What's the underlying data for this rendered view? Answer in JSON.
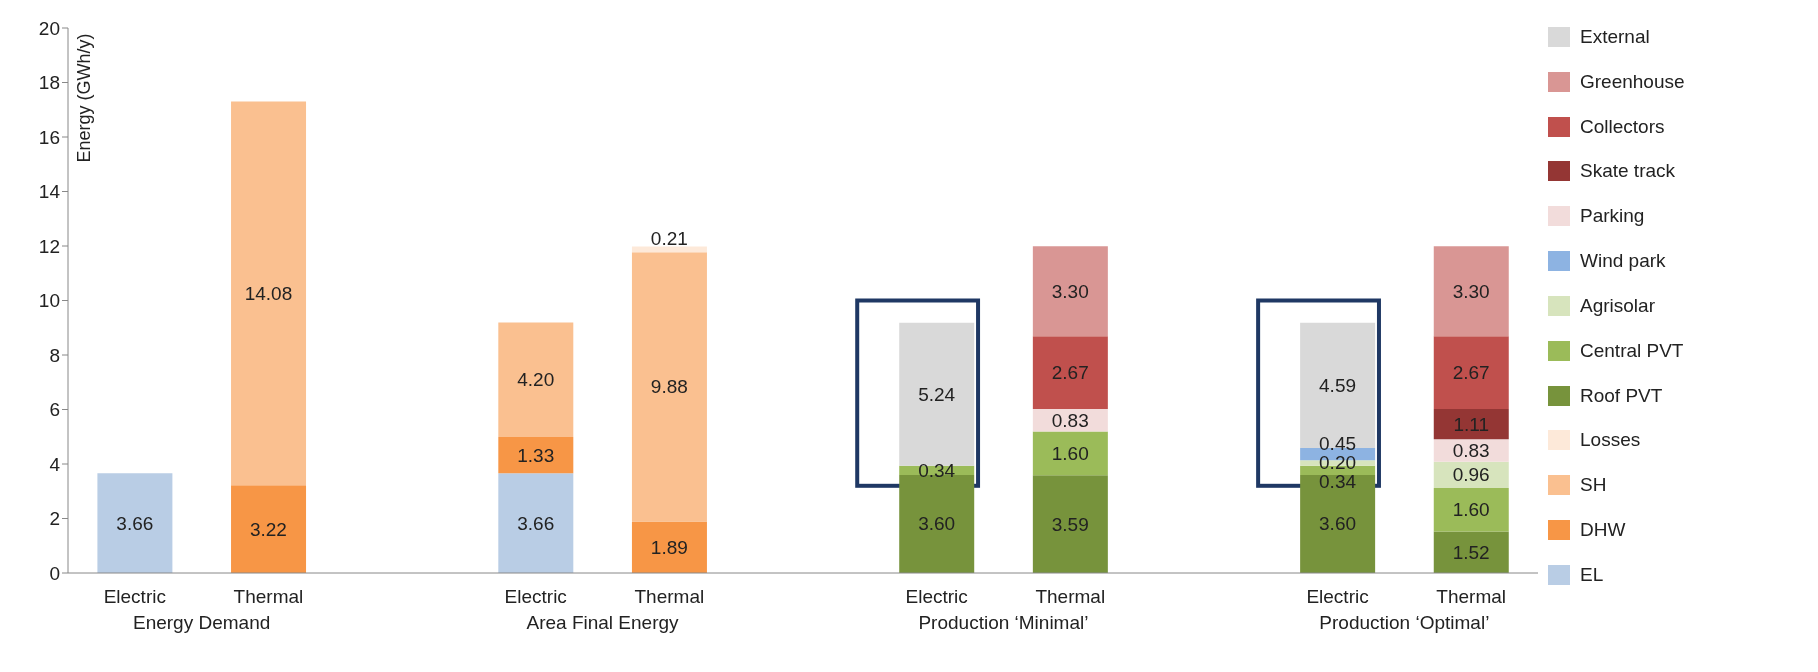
{
  "chart_data": {
    "type": "bar",
    "stacked": true,
    "ylabel": "Energy (GWh/y)",
    "ylim": [
      0,
      20
    ],
    "yticks": [
      0,
      2,
      4,
      6,
      8,
      10,
      12,
      14,
      16,
      18,
      20
    ],
    "legend": "right",
    "categories": [
      "Electric",
      "Thermal",
      null,
      "Electric",
      "Thermal",
      null,
      "Electric",
      "Thermal",
      null,
      "Electric",
      "Thermal"
    ],
    "annotations": [
      "Energy Demand",
      "Area Final Energy",
      "Production ‘Minimal’",
      "Production ‘Optimal’"
    ],
    "series": [
      {
        "name": "EL",
        "color": "#b9cde5",
        "values": [
          3.66,
          null,
          null,
          3.66,
          null,
          null,
          null,
          null,
          null,
          null,
          null
        ],
        "value_labels": [
          "3.66",
          null,
          null,
          "3.66",
          null,
          null,
          null,
          null,
          null,
          null,
          null
        ]
      },
      {
        "name": "DHW",
        "color": "#f79646",
        "values": [
          null,
          3.22,
          null,
          1.33,
          1.89,
          null,
          null,
          null,
          null,
          null,
          null
        ],
        "value_labels": [
          null,
          "3.22",
          null,
          "1.33",
          "1.89",
          null,
          null,
          null,
          null,
          null,
          null
        ]
      },
      {
        "name": "SH",
        "color": "#fac090",
        "values": [
          null,
          14.08,
          null,
          4.2,
          9.88,
          null,
          null,
          null,
          null,
          null,
          null
        ],
        "value_labels": [
          null,
          "14.08",
          null,
          "4.20",
          "9.88",
          null,
          null,
          null,
          null,
          null,
          null
        ]
      },
      {
        "name": "Losses",
        "color": "#fde9d9",
        "values": [
          null,
          null,
          null,
          null,
          0.21,
          null,
          null,
          null,
          null,
          null,
          null
        ],
        "value_labels": [
          null,
          null,
          null,
          null,
          "0.21",
          null,
          null,
          null,
          null,
          null,
          null
        ]
      },
      {
        "name": "Roof PVT",
        "color": "#77933c",
        "values": [
          null,
          null,
          null,
          null,
          null,
          null,
          3.6,
          3.59,
          null,
          3.6,
          1.52
        ],
        "value_labels": [
          null,
          null,
          null,
          null,
          null,
          null,
          "3.60",
          "3.59",
          null,
          "3.60",
          "1.52"
        ]
      },
      {
        "name": "Central PVT",
        "color": "#9bbb59",
        "values": [
          null,
          null,
          null,
          null,
          null,
          null,
          0.34,
          1.6,
          null,
          0.34,
          1.6
        ],
        "value_labels": [
          null,
          null,
          null,
          null,
          null,
          null,
          "0.34",
          "1.60",
          null,
          "0.34",
          "1.60"
        ]
      },
      {
        "name": "Agrisolar",
        "color": "#d7e4bd",
        "values": [
          null,
          null,
          null,
          null,
          null,
          null,
          null,
          null,
          null,
          0.2,
          0.96
        ],
        "value_labels": [
          null,
          null,
          null,
          null,
          null,
          null,
          null,
          null,
          null,
          "0.20",
          "0.96"
        ]
      },
      {
        "name": "Wind park",
        "color": "#8db3e2",
        "values": [
          null,
          null,
          null,
          null,
          null,
          null,
          null,
          null,
          null,
          0.45,
          null
        ],
        "value_labels": [
          null,
          null,
          null,
          null,
          null,
          null,
          null,
          null,
          null,
          "0.45",
          null
        ]
      },
      {
        "name": "Parking",
        "color": "#f2dcdb",
        "values": [
          null,
          null,
          null,
          null,
          null,
          null,
          null,
          0.83,
          null,
          null,
          0.83
        ],
        "value_labels": [
          null,
          null,
          null,
          null,
          null,
          null,
          null,
          "0.83",
          null,
          null,
          "0.83"
        ]
      },
      {
        "name": "Skate track",
        "color": "#943634",
        "values": [
          null,
          null,
          null,
          null,
          null,
          null,
          null,
          null,
          null,
          null,
          1.11
        ],
        "value_labels": [
          null,
          null,
          null,
          null,
          null,
          null,
          null,
          null,
          null,
          null,
          "1.11"
        ]
      },
      {
        "name": "Collectors",
        "color": "#c0504d",
        "values": [
          null,
          null,
          null,
          null,
          null,
          null,
          null,
          2.67,
          null,
          null,
          2.67
        ],
        "value_labels": [
          null,
          null,
          null,
          null,
          null,
          null,
          null,
          "2.67",
          null,
          null,
          "2.67"
        ]
      },
      {
        "name": "Greenhouse",
        "color": "#d99694",
        "values": [
          null,
          null,
          null,
          null,
          null,
          null,
          null,
          3.3,
          null,
          null,
          3.3
        ],
        "value_labels": [
          null,
          null,
          null,
          null,
          null,
          null,
          null,
          "3.30",
          null,
          null,
          "3.30"
        ]
      },
      {
        "name": "External",
        "color": "#d9d9d9",
        "values": [
          null,
          null,
          null,
          null,
          null,
          null,
          5.24,
          null,
          null,
          4.59,
          null
        ],
        "value_labels": [
          null,
          null,
          null,
          null,
          null,
          null,
          "5.24",
          null,
          null,
          "4.59",
          null
        ]
      }
    ]
  }
}
